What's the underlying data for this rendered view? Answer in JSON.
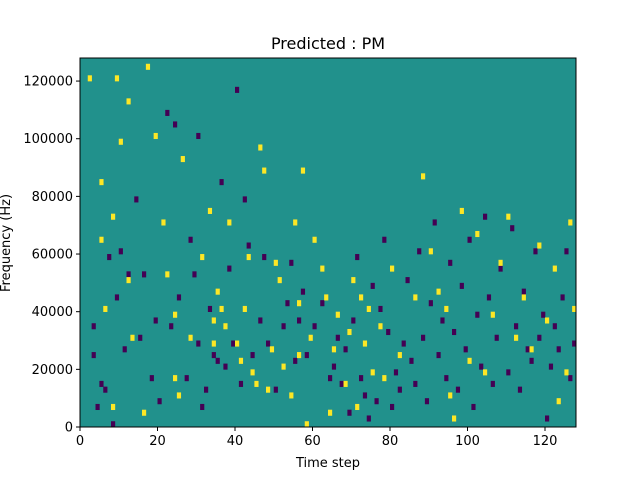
{
  "chart_data": {
    "type": "heatmap",
    "title": "Predicted : PM",
    "xlabel": "Time step",
    "ylabel": "Frequency (Hz)",
    "xlim": [
      0,
      128
    ],
    "ylim": [
      0,
      128000
    ],
    "xticks": [
      0,
      20,
      40,
      60,
      80,
      100,
      120
    ],
    "yticks": [
      0,
      20000,
      40000,
      60000,
      80000,
      100000,
      120000
    ],
    "xtick_labels": [
      "0",
      "20",
      "40",
      "60",
      "80",
      "100",
      "120"
    ],
    "ytick_labels": [
      "0",
      "20000",
      "40000",
      "60000",
      "80000",
      "100000",
      "120000"
    ],
    "grid": false,
    "colormap": "viridis",
    "colors": {
      "low": "#440154",
      "mid": "#21918c",
      "high": "#fde725"
    },
    "background_value": "mid",
    "freq_bin_hz": 2000,
    "cells": {
      "high": [
        [
          2,
          120000
        ],
        [
          5,
          84000
        ],
        [
          5,
          64000
        ],
        [
          6,
          40000
        ],
        [
          8,
          6000
        ],
        [
          8,
          72000
        ],
        [
          9,
          120000
        ],
        [
          10,
          98000
        ],
        [
          12,
          112000
        ],
        [
          12,
          50000
        ],
        [
          13,
          30000
        ],
        [
          16,
          4000
        ],
        [
          17,
          124000
        ],
        [
          19,
          100000
        ],
        [
          21,
          70000
        ],
        [
          22,
          52000
        ],
        [
          24,
          38000
        ],
        [
          24,
          16000
        ],
        [
          25,
          10000
        ],
        [
          26,
          92000
        ],
        [
          28,
          30000
        ],
        [
          31,
          58000
        ],
        [
          33,
          74000
        ],
        [
          34,
          28000
        ],
        [
          34,
          36000
        ],
        [
          35,
          46000
        ],
        [
          36,
          40000
        ],
        [
          37,
          34000
        ],
        [
          38,
          70000
        ],
        [
          40,
          28000
        ],
        [
          41,
          22000
        ],
        [
          42,
          40000
        ],
        [
          43,
          58000
        ],
        [
          44,
          18000
        ],
        [
          45,
          14000
        ],
        [
          46,
          96000
        ],
        [
          47,
          88000
        ],
        [
          48,
          12000
        ],
        [
          49,
          26000
        ],
        [
          50,
          56000
        ],
        [
          51,
          50000
        ],
        [
          52,
          20000
        ],
        [
          54,
          10000
        ],
        [
          55,
          70000
        ],
        [
          56,
          24000
        ],
        [
          56,
          42000
        ],
        [
          57,
          88000
        ],
        [
          58,
          0
        ],
        [
          59,
          30000
        ],
        [
          60,
          64000
        ],
        [
          62,
          54000
        ],
        [
          63,
          44000
        ],
        [
          64,
          4000
        ],
        [
          65,
          26000
        ],
        [
          66,
          38000
        ],
        [
          68,
          14000
        ],
        [
          69,
          32000
        ],
        [
          70,
          50000
        ],
        [
          71,
          6000
        ],
        [
          72,
          44000
        ],
        [
          73,
          28000
        ],
        [
          74,
          40000
        ],
        [
          75,
          18000
        ],
        [
          77,
          34000
        ],
        [
          78,
          16000
        ],
        [
          80,
          54000
        ],
        [
          82,
          24000
        ],
        [
          86,
          44000
        ],
        [
          88,
          86000
        ],
        [
          90,
          60000
        ],
        [
          92,
          46000
        ],
        [
          94,
          40000
        ],
        [
          95,
          10000
        ],
        [
          96,
          2000
        ],
        [
          98,
          74000
        ],
        [
          100,
          22000
        ],
        [
          102,
          66000
        ],
        [
          104,
          18000
        ],
        [
          106,
          38000
        ],
        [
          108,
          56000
        ],
        [
          110,
          72000
        ],
        [
          112,
          30000
        ],
        [
          114,
          44000
        ],
        [
          116,
          26000
        ],
        [
          118,
          62000
        ],
        [
          120,
          36000
        ],
        [
          122,
          54000
        ],
        [
          123,
          8000
        ],
        [
          125,
          18000
        ],
        [
          126,
          70000
        ],
        [
          127,
          40000
        ]
      ],
      "low": [
        [
          3,
          34000
        ],
        [
          3,
          24000
        ],
        [
          4,
          6000
        ],
        [
          5,
          14000
        ],
        [
          6,
          12000
        ],
        [
          7,
          58000
        ],
        [
          8,
          0
        ],
        [
          9,
          44000
        ],
        [
          10,
          60000
        ],
        [
          11,
          26000
        ],
        [
          12,
          52000
        ],
        [
          14,
          78000
        ],
        [
          15,
          30000
        ],
        [
          16,
          52000
        ],
        [
          18,
          16000
        ],
        [
          19,
          36000
        ],
        [
          20,
          8000
        ],
        [
          22,
          108000
        ],
        [
          23,
          34000
        ],
        [
          24,
          104000
        ],
        [
          25,
          44000
        ],
        [
          27,
          16000
        ],
        [
          28,
          64000
        ],
        [
          29,
          52000
        ],
        [
          30,
          100000
        ],
        [
          30,
          28000
        ],
        [
          31,
          6000
        ],
        [
          32,
          12000
        ],
        [
          33,
          40000
        ],
        [
          34,
          24000
        ],
        [
          35,
          22000
        ],
        [
          36,
          84000
        ],
        [
          37,
          20000
        ],
        [
          38,
          54000
        ],
        [
          39,
          28000
        ],
        [
          40,
          116000
        ],
        [
          41,
          14000
        ],
        [
          42,
          78000
        ],
        [
          43,
          62000
        ],
        [
          44,
          24000
        ],
        [
          46,
          36000
        ],
        [
          47,
          58000
        ],
        [
          48,
          28000
        ],
        [
          50,
          12000
        ],
        [
          52,
          34000
        ],
        [
          53,
          42000
        ],
        [
          54,
          56000
        ],
        [
          55,
          22000
        ],
        [
          56,
          36000
        ],
        [
          57,
          46000
        ],
        [
          58,
          24000
        ],
        [
          60,
          34000
        ],
        [
          62,
          42000
        ],
        [
          64,
          16000
        ],
        [
          65,
          20000
        ],
        [
          66,
          30000
        ],
        [
          67,
          14000
        ],
        [
          68,
          26000
        ],
        [
          69,
          4000
        ],
        [
          70,
          36000
        ],
        [
          71,
          58000
        ],
        [
          72,
          16000
        ],
        [
          73,
          10000
        ],
        [
          74,
          2000
        ],
        [
          75,
          48000
        ],
        [
          76,
          8000
        ],
        [
          77,
          40000
        ],
        [
          78,
          64000
        ],
        [
          79,
          32000
        ],
        [
          80,
          6000
        ],
        [
          81,
          18000
        ],
        [
          82,
          12000
        ],
        [
          83,
          28000
        ],
        [
          84,
          50000
        ],
        [
          85,
          22000
        ],
        [
          86,
          14000
        ],
        [
          87,
          60000
        ],
        [
          88,
          30000
        ],
        [
          89,
          8000
        ],
        [
          90,
          42000
        ],
        [
          91,
          70000
        ],
        [
          92,
          24000
        ],
        [
          93,
          36000
        ],
        [
          94,
          16000
        ],
        [
          95,
          56000
        ],
        [
          96,
          32000
        ],
        [
          97,
          12000
        ],
        [
          98,
          48000
        ],
        [
          99,
          26000
        ],
        [
          100,
          64000
        ],
        [
          101,
          6000
        ],
        [
          102,
          38000
        ],
        [
          103,
          20000
        ],
        [
          104,
          72000
        ],
        [
          105,
          44000
        ],
        [
          106,
          14000
        ],
        [
          107,
          30000
        ],
        [
          108,
          54000
        ],
        [
          110,
          18000
        ],
        [
          111,
          68000
        ],
        [
          112,
          34000
        ],
        [
          113,
          12000
        ],
        [
          114,
          46000
        ],
        [
          115,
          26000
        ],
        [
          116,
          22000
        ],
        [
          117,
          60000
        ],
        [
          118,
          30000
        ],
        [
          119,
          38000
        ],
        [
          120,
          2000
        ],
        [
          121,
          20000
        ],
        [
          122,
          34000
        ],
        [
          123,
          26000
        ],
        [
          124,
          44000
        ],
        [
          125,
          60000
        ],
        [
          126,
          16000
        ],
        [
          127,
          28000
        ]
      ]
    }
  }
}
